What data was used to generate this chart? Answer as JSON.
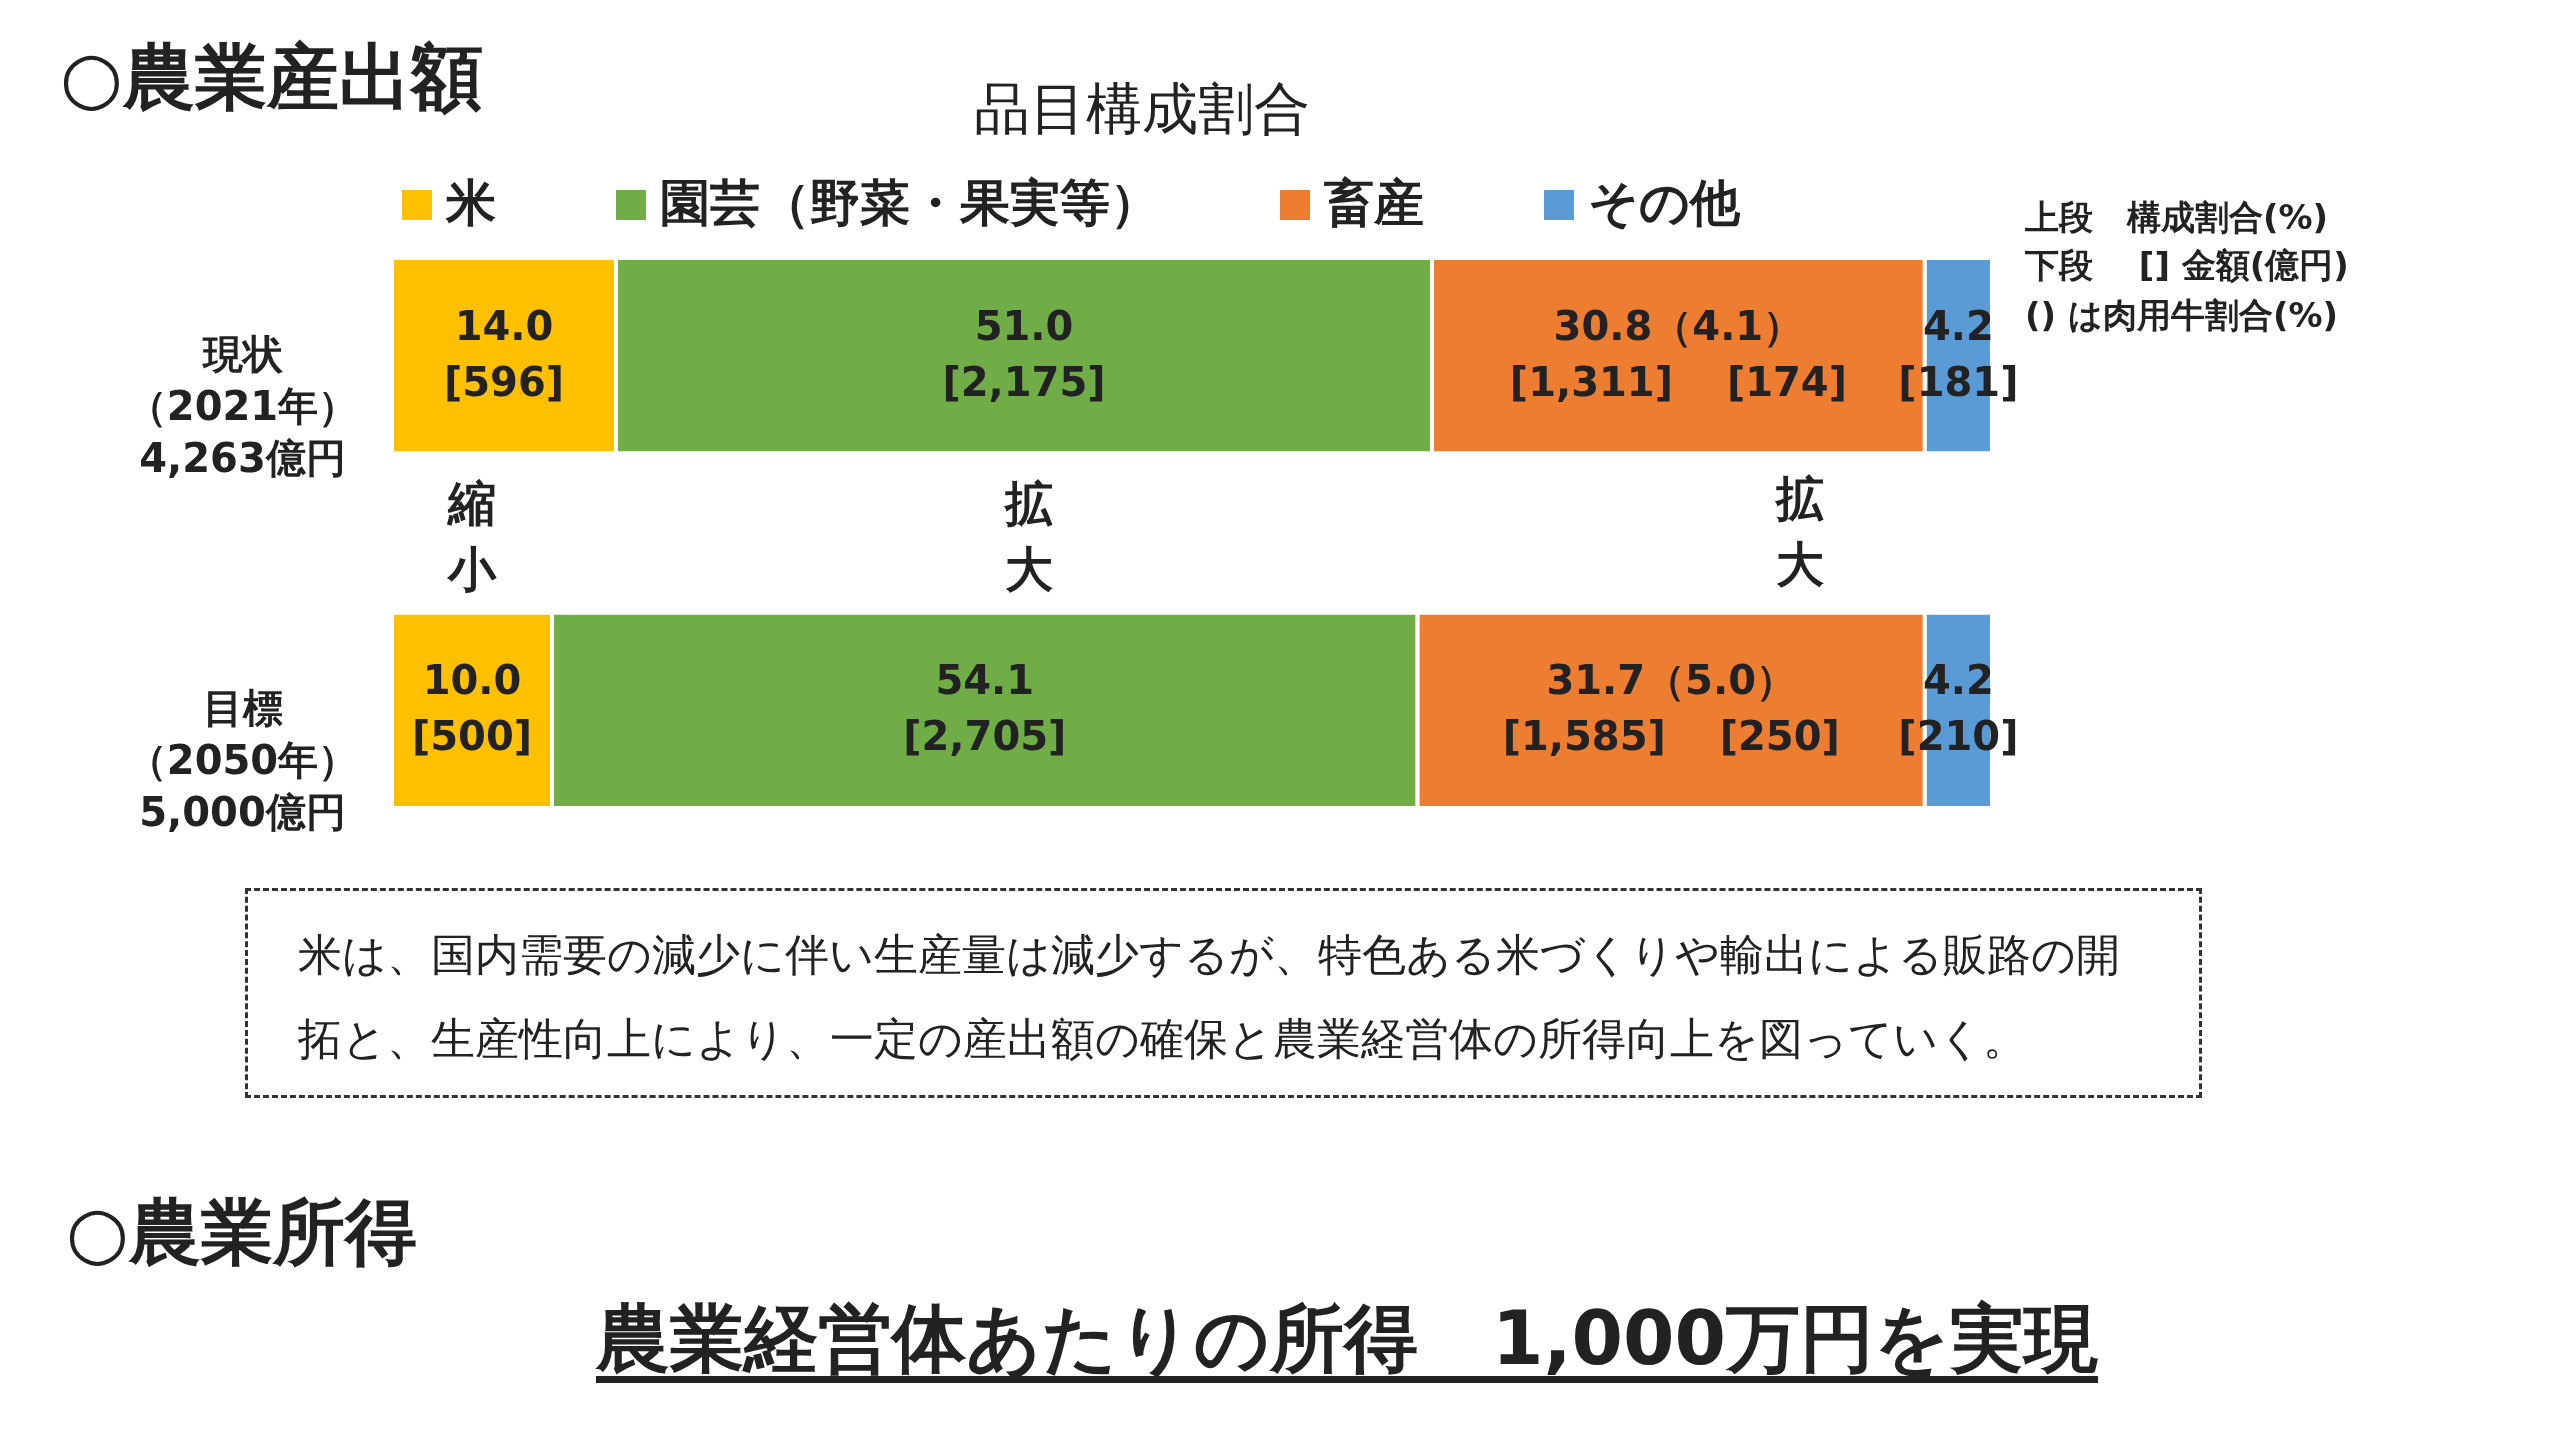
{
  "chart_data": {
    "type": "bar",
    "orientation": "horizontal",
    "stacked": true,
    "title": "品目構成割合",
    "categories": [
      "現状（2021年）4,263億円",
      "目標（2050年）5,000億円"
    ],
    "series": [
      {
        "name": "米",
        "color": "#ffc000",
        "values": [
          14.0,
          10.0
        ],
        "value_labels": [
          "14.0\n[596]",
          "10.0\n[500]"
        ]
      },
      {
        "name": "園芸（野菜・果実等）",
        "color": "#70ad47",
        "values": [
          51.0,
          54.1
        ],
        "value_labels": [
          "51.0\n[2,175]",
          "54.1\n[2,705]"
        ]
      },
      {
        "name": "畜産",
        "color": "#ed7d31",
        "values": [
          30.8,
          31.7
        ],
        "value_labels": [
          "30.8（4.1）\n[1,311]　 [174]",
          "31.7（5.0）\n[1,585]　 [250]"
        ]
      },
      {
        "name": "その他",
        "color": "#5b9bd5",
        "values": [
          4.2,
          4.2
        ],
        "value_labels": [
          "4.2\n[181]",
          "4.2\n[210]"
        ]
      }
    ],
    "legend": "top",
    "tick_labels": "y",
    "annotations": [
      "○農業産出額",
      "上段　構成割合(%)",
      "下段　 [] 金額(億円)",
      "() は肉用牛割合(%)",
      "縮小",
      "拡大",
      "拡大",
      "米は、国内需要の減少に伴い生産量は減少するが、特色ある米づくりや輸出による販路の開拓と、生産性向上により、一定の産出額の確保と農業経営体の所得向上を図っていく。",
      "○農業所得",
      "農業経営体あたりの所得　1,000万円を実現"
    ]
  }
}
